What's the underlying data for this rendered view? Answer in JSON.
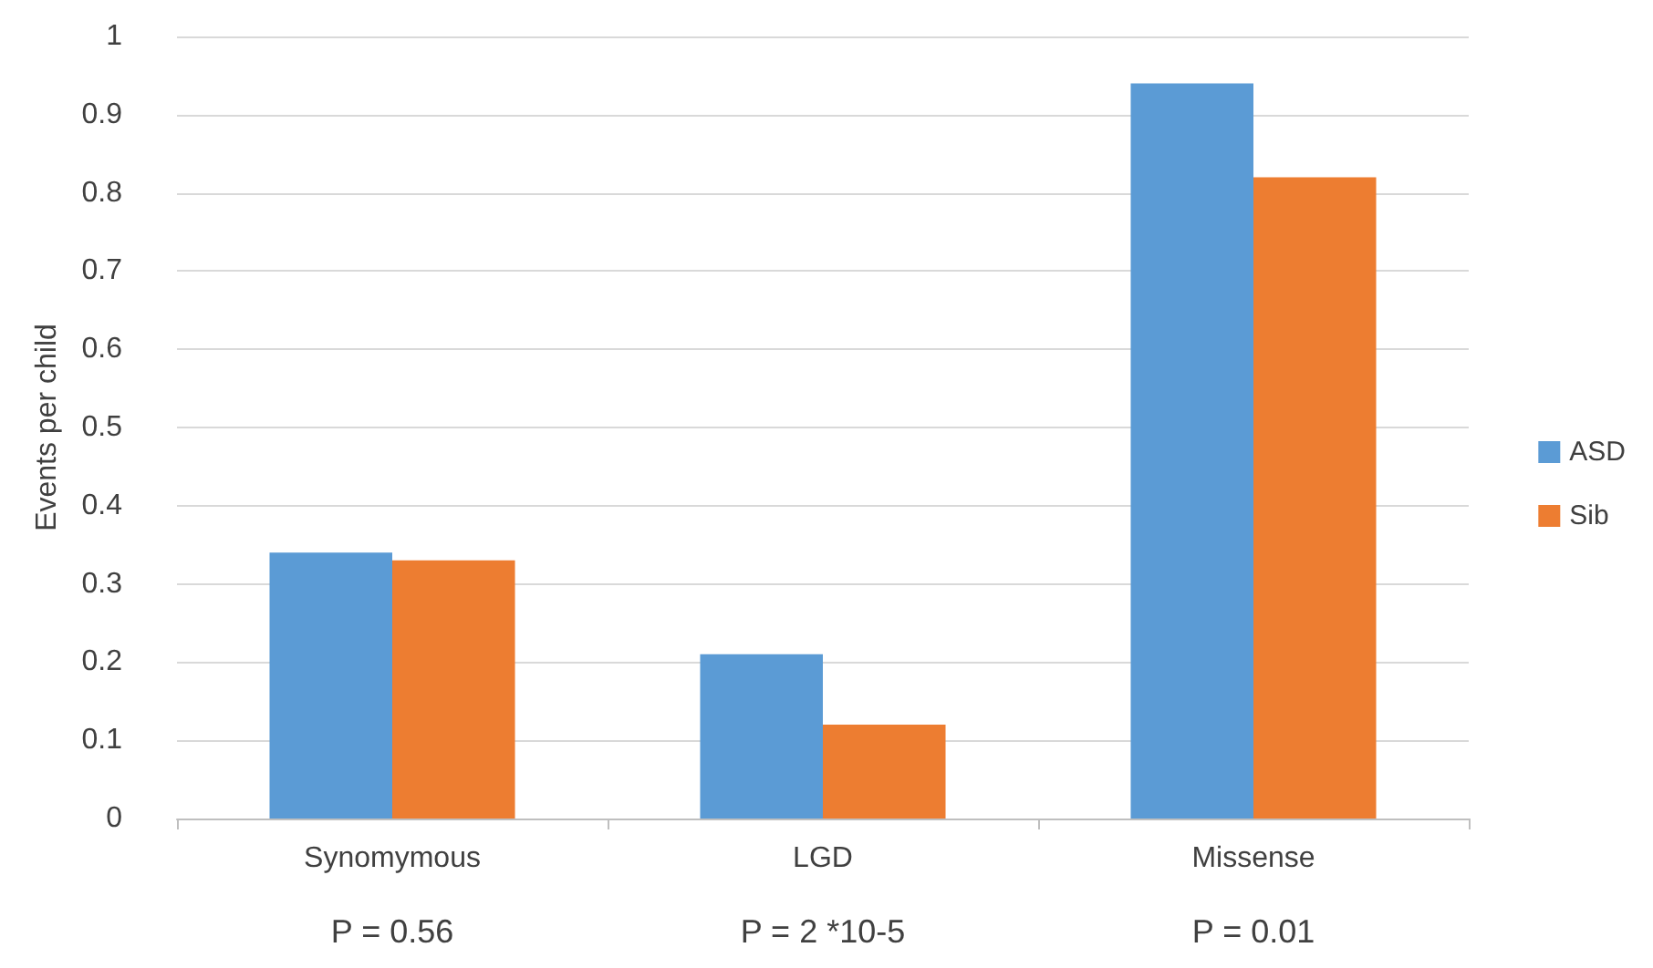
{
  "chart_data": {
    "type": "bar",
    "ylabel": "Events per child",
    "categories": [
      "Synomymous",
      "LGD",
      "Missense"
    ],
    "series": [
      {
        "name": "ASD",
        "color": "#5b9bd5",
        "values": [
          0.34,
          0.21,
          0.94
        ]
      },
      {
        "name": "Sib",
        "color": "#ed7d31",
        "values": [
          0.33,
          0.12,
          0.82
        ]
      }
    ],
    "ylim": [
      0,
      1
    ],
    "yticks": [
      0,
      0.1,
      0.2,
      0.3,
      0.4,
      0.5,
      0.6,
      0.7,
      0.8,
      0.9,
      1
    ],
    "grid": "y",
    "legend": "right",
    "annotations": [
      "P = 0.56",
      "P = 2 *10-5",
      "P = 0.01"
    ]
  }
}
